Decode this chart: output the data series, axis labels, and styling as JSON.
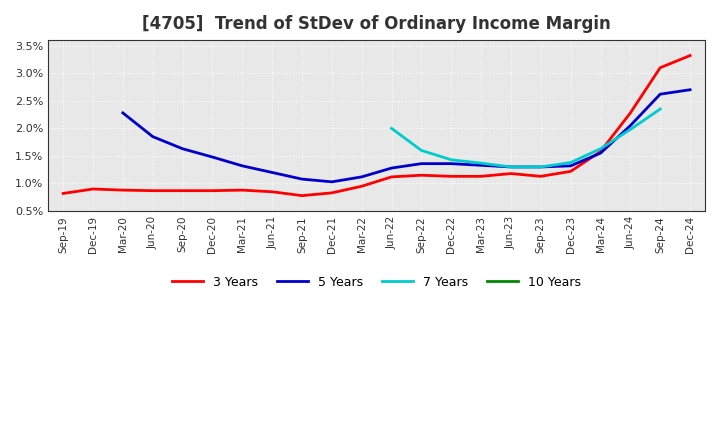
{
  "title": "[4705]  Trend of StDev of Ordinary Income Margin",
  "title_fontsize": 12,
  "title_fontweight": "bold",
  "title_color": "#333333",
  "ylim": [
    0.005,
    0.036
  ],
  "yticks": [
    0.005,
    0.01,
    0.015,
    0.02,
    0.025,
    0.03,
    0.035
  ],
  "ytick_labels": [
    "0.5%",
    "1.0%",
    "1.5%",
    "2.0%",
    "2.5%",
    "3.0%",
    "3.5%"
  ],
  "background_color": "#ffffff",
  "plot_bg_color": "#e8e8e8",
  "grid_color": "#ffffff",
  "x_labels": [
    "Sep-19",
    "Dec-19",
    "Mar-20",
    "Jun-20",
    "Sep-20",
    "Dec-20",
    "Mar-21",
    "Jun-21",
    "Sep-21",
    "Dec-21",
    "Mar-22",
    "Jun-22",
    "Sep-22",
    "Dec-22",
    "Mar-23",
    "Jun-23",
    "Sep-23",
    "Dec-23",
    "Mar-24",
    "Jun-24",
    "Sep-24",
    "Dec-24"
  ],
  "series_3y": {
    "color": "#ff0000",
    "label": "3 Years",
    "values": [
      0.0082,
      0.009,
      0.0088,
      0.0087,
      0.0087,
      0.0087,
      0.0088,
      0.0085,
      0.0078,
      0.0083,
      0.0095,
      0.0112,
      0.0115,
      0.0113,
      0.0113,
      0.0118,
      0.0113,
      0.0122,
      0.0158,
      0.0228,
      0.031,
      0.0332
    ]
  },
  "series_5y": {
    "color": "#0000cc",
    "label": "5 Years",
    "values": [
      null,
      null,
      0.0228,
      0.0185,
      0.0163,
      0.0148,
      0.0132,
      0.012,
      0.0108,
      0.0103,
      0.0112,
      0.0128,
      0.0136,
      0.0136,
      0.0133,
      0.013,
      0.013,
      0.0132,
      0.0155,
      0.0205,
      0.0262,
      0.027
    ]
  },
  "series_7y": {
    "color": "#00cccc",
    "label": "7 Years",
    "values": [
      null,
      null,
      null,
      null,
      null,
      null,
      null,
      null,
      null,
      null,
      null,
      0.02,
      0.016,
      0.0143,
      0.0137,
      0.013,
      0.013,
      0.0138,
      0.0163,
      0.0198,
      0.0235,
      null
    ]
  },
  "series_10y": {
    "color": "#008800",
    "label": "10 Years",
    "values": [
      null,
      null,
      null,
      null,
      null,
      null,
      null,
      null,
      null,
      null,
      null,
      null,
      null,
      null,
      null,
      null,
      null,
      null,
      null,
      null,
      null,
      null
    ]
  },
  "legend_ncol": 4,
  "line_width": 2.0
}
